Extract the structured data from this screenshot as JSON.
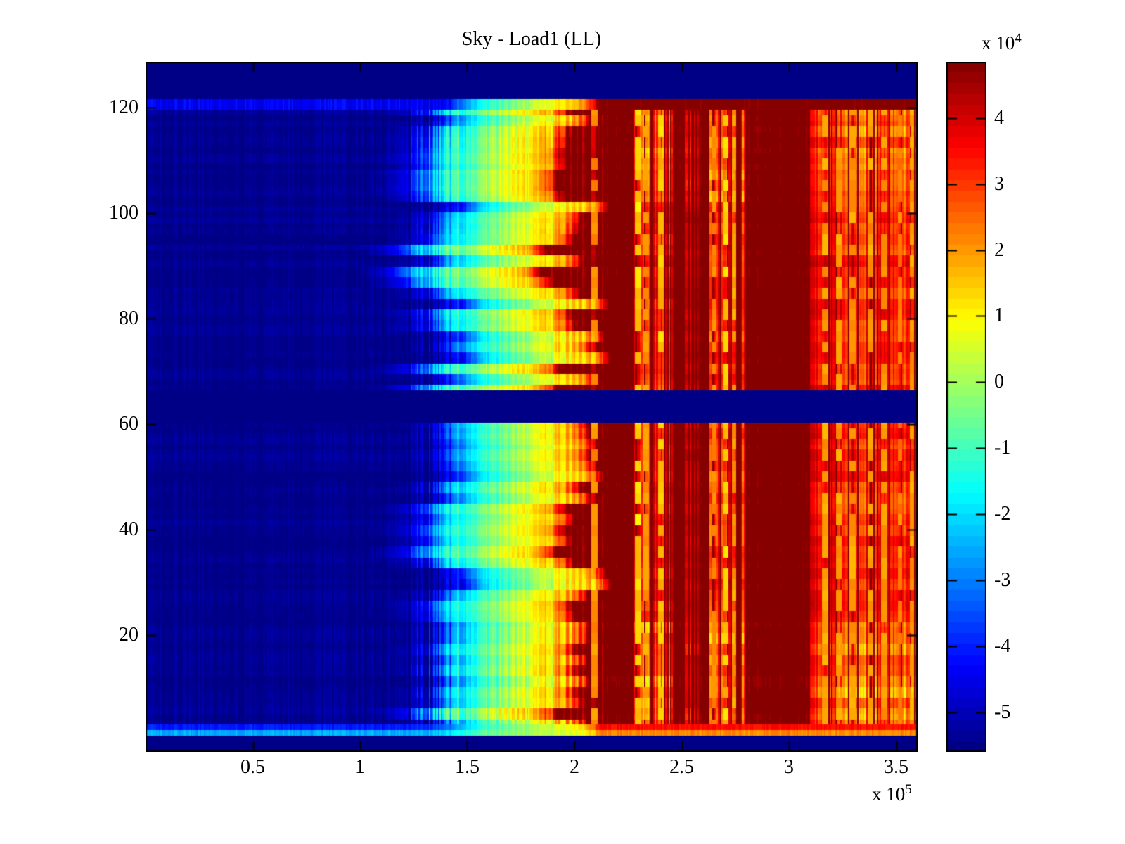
{
  "figure": {
    "background": "#ffffff",
    "axis_color": "#000000"
  },
  "chart_data": {
    "type": "heatmap",
    "title": "Sky - Load1 (LL)",
    "colormap": "jet",
    "grid": false,
    "x_axis": {
      "min": 0,
      "max": 3.6,
      "unit_exponent_label": {
        "prefix": "x 10",
        "exponent": "5"
      },
      "ticks": [
        {
          "v": 0.5,
          "label": "0.5"
        },
        {
          "v": 1.0,
          "label": "1"
        },
        {
          "v": 1.5,
          "label": "1.5"
        },
        {
          "v": 2.0,
          "label": "2"
        },
        {
          "v": 2.5,
          "label": "2.5"
        },
        {
          "v": 3.0,
          "label": "3"
        },
        {
          "v": 3.5,
          "label": "3.5"
        }
      ]
    },
    "y_axis": {
      "min": -2.1,
      "max": 128.7,
      "ticks": [
        {
          "v": 20,
          "label": "20"
        },
        {
          "v": 40,
          "label": "40"
        },
        {
          "v": 60,
          "label": "60"
        },
        {
          "v": 80,
          "label": "80"
        },
        {
          "v": 100,
          "label": "100"
        },
        {
          "v": 120,
          "label": "120"
        }
      ]
    },
    "colorbar": {
      "clim_min": -5.6,
      "clim_max": 4.85,
      "levels": 64,
      "unit_exponent_label": {
        "prefix": "x 10",
        "exponent": "4"
      },
      "ticks": [
        {
          "v": 4,
          "label": "4"
        },
        {
          "v": 3,
          "label": "3"
        },
        {
          "v": 2,
          "label": "2"
        },
        {
          "v": 1,
          "label": "1"
        },
        {
          "v": 0,
          "label": "0"
        },
        {
          "v": -1,
          "label": "-1"
        },
        {
          "v": -2,
          "label": "-2"
        },
        {
          "v": -3,
          "label": "-3"
        },
        {
          "v": -4,
          "label": "-4"
        },
        {
          "v": -5,
          "label": "-5"
        }
      ]
    },
    "structure": {
      "comment": "values in units of 1e4; x in units of 1e5; y in data rows",
      "data_min": -5.45,
      "data_max": 5.0,
      "n_rows": 128,
      "n_cols": 512,
      "bands": {
        "top_navy_above_y": 121.5,
        "top_stripe_rows": [
          119.0,
          121.5
        ],
        "gap_rows": [
          60.1,
          66.1
        ],
        "medium_blue_row": [
          1.9,
          3.1
        ],
        "cyan_stripe_row": [
          0.85,
          1.9
        ],
        "bottom_navy_below_y": 0.85
      },
      "base_profile": [
        [
          0.0,
          -5.45
        ],
        [
          1.22,
          -5.45
        ],
        [
          1.32,
          -5.1
        ],
        [
          1.42,
          -4.3
        ],
        [
          1.47,
          -3.2
        ],
        [
          1.52,
          -2.3
        ],
        [
          1.58,
          -1.6
        ],
        [
          1.67,
          -0.9
        ],
        [
          1.75,
          -0.3
        ],
        [
          1.83,
          0.35
        ],
        [
          1.92,
          0.95
        ],
        [
          2.0,
          1.4
        ],
        [
          2.04,
          2.0
        ],
        [
          2.08,
          3.2
        ],
        [
          2.12,
          5.0
        ],
        [
          3.6,
          5.0
        ]
      ],
      "streak_clusters": [
        {
          "x0": 2.13,
          "x1": 2.19,
          "amp": 2.4,
          "density": 0.55
        },
        {
          "x0": 2.28,
          "x1": 2.46,
          "amp": 3.1,
          "density": 0.7
        },
        {
          "x0": 2.52,
          "x1": 2.58,
          "amp": 1.6,
          "density": 0.4
        },
        {
          "x0": 2.62,
          "x1": 2.8,
          "amp": 3.2,
          "density": 0.65
        },
        {
          "x0": 3.08,
          "x1": 3.6,
          "amp": 2.8,
          "density": 0.8
        }
      ],
      "bright_lines": [
        2.095,
        2.3,
        2.335,
        2.405,
        2.655,
        2.705,
        2.745,
        3.17,
        3.235,
        3.3,
        3.38,
        3.445,
        3.52,
        3.575
      ]
    }
  }
}
